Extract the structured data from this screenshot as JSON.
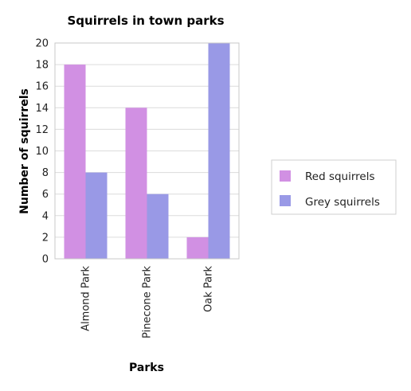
{
  "chart_data": {
    "type": "bar",
    "title": "Squirrels in town parks",
    "xlabel": "Parks",
    "ylabel": "Number of squirrels",
    "categories": [
      "Almond Park",
      "Pinecone Park",
      "Oak Park"
    ],
    "series": [
      {
        "name": "Red squirrels",
        "values": [
          18,
          14,
          2
        ],
        "color": "#d190e3"
      },
      {
        "name": "Grey squirrels",
        "values": [
          8,
          6,
          20
        ],
        "color": "#9999e6"
      }
    ],
    "ylim": [
      0,
      20
    ],
    "yticks": [
      0,
      2,
      4,
      6,
      8,
      10,
      12,
      14,
      16,
      18,
      20
    ],
    "grid": true,
    "legend_position": "right"
  }
}
